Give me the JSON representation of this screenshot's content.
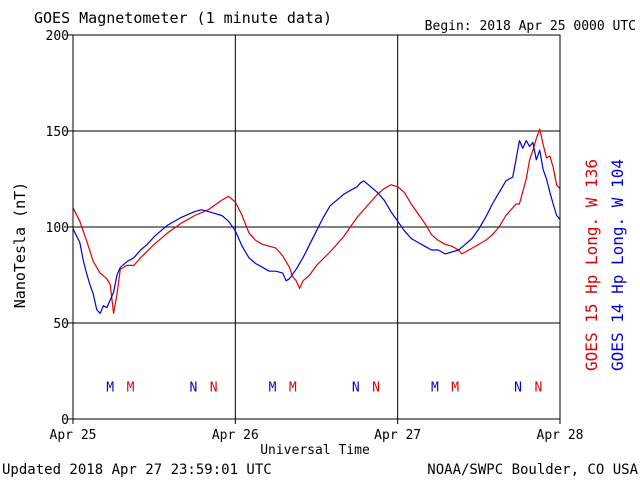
{
  "chart_data": {
    "type": "line",
    "title": "GOES Magnetometer (1 minute data)",
    "begin_label": "Begin:  2018 Apr 25 0000 UTC",
    "xlabel": "Universal Time",
    "ylabel": "NanoTesla (nT)",
    "ylim": [
      0,
      200
    ],
    "yticks": [
      0,
      50,
      100,
      150,
      200
    ],
    "xlim": [
      0,
      72
    ],
    "x_unit": "hours since 2018 Apr 25 0000 UTC",
    "x_tick_labels": [
      {
        "x": 0,
        "label": "Apr 25"
      },
      {
        "x": 24,
        "label": "Apr 26"
      },
      {
        "x": 48,
        "label": "Apr 27"
      },
      {
        "x": 72,
        "label": "Apr 28"
      }
    ],
    "grid": true,
    "legend": [
      {
        "label": "GOES 15 Hp  Long. W 136",
        "color": "#e00000"
      },
      {
        "label": "GOES 14 Hp  Long. W 104",
        "color": "#0000dd"
      }
    ],
    "markers": [
      {
        "x": 5.5,
        "label": "M",
        "color": "#0000dd"
      },
      {
        "x": 8.5,
        "label": "M",
        "color": "#e00000"
      },
      {
        "x": 17.8,
        "label": "N",
        "color": "#0000dd"
      },
      {
        "x": 20.8,
        "label": "N",
        "color": "#e00000"
      },
      {
        "x": 29.5,
        "label": "M",
        "color": "#0000dd"
      },
      {
        "x": 32.5,
        "label": "M",
        "color": "#e00000"
      },
      {
        "x": 41.8,
        "label": "N",
        "color": "#0000dd"
      },
      {
        "x": 44.8,
        "label": "N",
        "color": "#e00000"
      },
      {
        "x": 53.5,
        "label": "M",
        "color": "#0000dd"
      },
      {
        "x": 56.5,
        "label": "M",
        "color": "#e00000"
      },
      {
        "x": 65.8,
        "label": "N",
        "color": "#0000dd"
      },
      {
        "x": 68.8,
        "label": "N",
        "color": "#e00000"
      }
    ],
    "marker_y": 17,
    "series": [
      {
        "name": "GOES 15 Hp  Long. W 136",
        "color": "#e00000",
        "points": [
          [
            0,
            110
          ],
          [
            1,
            103
          ],
          [
            2,
            93
          ],
          [
            3,
            82
          ],
          [
            4,
            76
          ],
          [
            5,
            73
          ],
          [
            5.5,
            70
          ],
          [
            6,
            55
          ],
          [
            6.5,
            65
          ],
          [
            7,
            78
          ],
          [
            8,
            80
          ],
          [
            9,
            80
          ],
          [
            10,
            84
          ],
          [
            12,
            91
          ],
          [
            14,
            97
          ],
          [
            16,
            102
          ],
          [
            18,
            106
          ],
          [
            20,
            109
          ],
          [
            22,
            114
          ],
          [
            23,
            116
          ],
          [
            24,
            113
          ],
          [
            25,
            106
          ],
          [
            26,
            97
          ],
          [
            27,
            93
          ],
          [
            28,
            91
          ],
          [
            29,
            90
          ],
          [
            30,
            89
          ],
          [
            31,
            85
          ],
          [
            32,
            79
          ],
          [
            32.5,
            74
          ],
          [
            33,
            72
          ],
          [
            33.5,
            68
          ],
          [
            34,
            72
          ],
          [
            35,
            75
          ],
          [
            36,
            80
          ],
          [
            38,
            87
          ],
          [
            40,
            95
          ],
          [
            42,
            105
          ],
          [
            44,
            113
          ],
          [
            45,
            117
          ],
          [
            46,
            120
          ],
          [
            47,
            122
          ],
          [
            48,
            121
          ],
          [
            49,
            118
          ],
          [
            50,
            112
          ],
          [
            51,
            107
          ],
          [
            52,
            102
          ],
          [
            53,
            96
          ],
          [
            54,
            93
          ],
          [
            55,
            91
          ],
          [
            56,
            90
          ],
          [
            57,
            88
          ],
          [
            57.5,
            86
          ],
          [
            58,
            87
          ],
          [
            59,
            89
          ],
          [
            61,
            93
          ],
          [
            62,
            96
          ],
          [
            63,
            100
          ],
          [
            64,
            106
          ],
          [
            65,
            110
          ],
          [
            65.5,
            112
          ],
          [
            66,
            112
          ],
          [
            67,
            125
          ],
          [
            67.5,
            135
          ],
          [
            68,
            140
          ],
          [
            68.5,
            146
          ],
          [
            69,
            151
          ],
          [
            69.5,
            143
          ],
          [
            70,
            136
          ],
          [
            70.5,
            137
          ],
          [
            71,
            131
          ],
          [
            71.5,
            122
          ],
          [
            72,
            120
          ]
        ]
      },
      {
        "name": "GOES 14 Hp  Long. W 104",
        "color": "#0000dd",
        "points": [
          [
            0,
            99
          ],
          [
            1,
            92
          ],
          [
            1.5,
            83
          ],
          [
            2,
            76
          ],
          [
            2.5,
            70
          ],
          [
            3,
            65
          ],
          [
            3.5,
            57
          ],
          [
            4,
            55
          ],
          [
            4.5,
            59
          ],
          [
            5,
            58
          ],
          [
            5.5,
            62
          ],
          [
            6,
            66
          ],
          [
            6.5,
            75
          ],
          [
            7,
            79
          ],
          [
            8,
            82
          ],
          [
            9,
            84
          ],
          [
            10,
            88
          ],
          [
            11,
            91
          ],
          [
            12,
            95
          ],
          [
            13,
            98
          ],
          [
            14,
            101
          ],
          [
            16,
            105
          ],
          [
            18,
            108
          ],
          [
            19,
            109
          ],
          [
            20,
            108
          ],
          [
            21,
            107
          ],
          [
            22,
            106
          ],
          [
            23,
            103
          ],
          [
            24,
            98
          ],
          [
            25,
            90
          ],
          [
            26,
            84
          ],
          [
            27,
            81
          ],
          [
            28,
            79
          ],
          [
            29,
            77
          ],
          [
            30,
            77
          ],
          [
            31,
            76
          ],
          [
            31.5,
            72
          ],
          [
            32,
            73
          ],
          [
            33,
            78
          ],
          [
            34,
            84
          ],
          [
            35,
            91
          ],
          [
            36,
            98
          ],
          [
            37,
            105
          ],
          [
            38,
            111
          ],
          [
            40,
            117
          ],
          [
            41,
            119
          ],
          [
            42,
            121
          ],
          [
            42.5,
            123
          ],
          [
            43,
            124
          ],
          [
            44,
            121
          ],
          [
            45,
            118
          ],
          [
            46,
            114
          ],
          [
            47,
            108
          ],
          [
            48,
            103
          ],
          [
            49,
            98
          ],
          [
            50,
            94
          ],
          [
            51,
            92
          ],
          [
            52,
            90
          ],
          [
            53,
            88
          ],
          [
            54,
            88
          ],
          [
            55,
            86
          ],
          [
            56,
            87
          ],
          [
            57,
            88
          ],
          [
            58,
            91
          ],
          [
            59,
            94
          ],
          [
            60,
            99
          ],
          [
            61,
            105
          ],
          [
            62,
            112
          ],
          [
            63,
            118
          ],
          [
            64,
            124
          ],
          [
            64.5,
            125
          ],
          [
            65,
            126
          ],
          [
            65.5,
            135
          ],
          [
            66,
            145
          ],
          [
            66.5,
            141
          ],
          [
            67,
            145
          ],
          [
            67.5,
            142
          ],
          [
            68,
            144
          ],
          [
            68.5,
            135
          ],
          [
            69,
            140
          ],
          [
            69.5,
            130
          ],
          [
            70,
            125
          ],
          [
            70.5,
            118
          ],
          [
            71,
            112
          ],
          [
            71.5,
            106
          ],
          [
            72,
            104
          ]
        ]
      }
    ]
  },
  "footer": {
    "updated": "Updated 2018 Apr 27 23:59:01 UTC",
    "credit": "NOAA/SWPC Boulder, CO USA"
  }
}
